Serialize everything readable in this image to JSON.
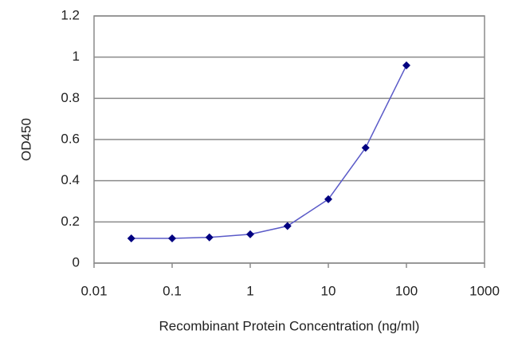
{
  "chart_data": {
    "type": "line",
    "xlabel": "Recombinant Protein Concentration (ng/ml)",
    "ylabel": "OD450",
    "x": [
      0.03,
      0.1,
      0.3,
      1,
      3,
      10,
      30,
      100
    ],
    "series": [
      {
        "color": "#000080",
        "line_color": "#5a5ac8",
        "values": [
          0.12,
          0.12,
          0.125,
          0.14,
          0.18,
          0.31,
          0.56,
          0.96
        ]
      }
    ],
    "xscale": "log",
    "xlim": [
      0.01,
      1000
    ],
    "xticks": [
      0.01,
      0.1,
      1,
      10,
      100,
      1000
    ],
    "ylim": [
      0,
      1.2
    ],
    "yticks": [
      0,
      0.2,
      0.4,
      0.6,
      0.8,
      1,
      1.2
    ],
    "grid": true
  }
}
